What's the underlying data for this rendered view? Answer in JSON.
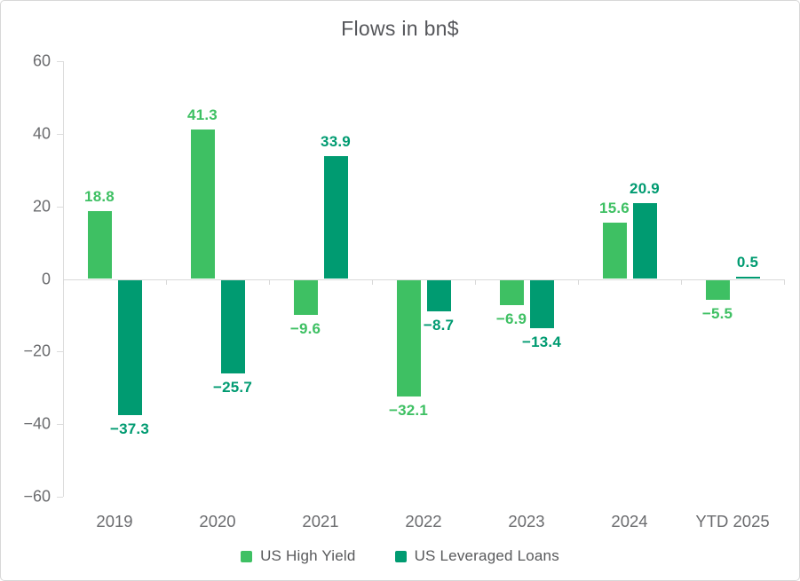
{
  "chart_data": {
    "type": "bar",
    "title": "Flows in bn$",
    "categories": [
      "2019",
      "2020",
      "2021",
      "2022",
      "2023",
      "2024",
      "YTD 2025"
    ],
    "series": [
      {
        "name": "US High Yield",
        "color": "#3ec063",
        "values": [
          18.8,
          41.3,
          -9.6,
          -32.1,
          -6.9,
          15.6,
          -5.5
        ]
      },
      {
        "name": "US Leveraged Loans",
        "color": "#009b71",
        "values": [
          -37.3,
          -25.7,
          33.9,
          -8.7,
          -13.4,
          20.9,
          0.5
        ]
      }
    ],
    "ylim": [
      -60,
      60
    ],
    "yticks": [
      60,
      40,
      20,
      0,
      -20,
      -40,
      -60
    ],
    "grid": false,
    "legend_position": "bottom",
    "value_labels": true
  },
  "colors": {
    "axis_line": "#dcdcdc",
    "zero_line": "#d9d9d9",
    "tick_text": "#6a6b6e",
    "title_text": "#55565a",
    "legend_text": "#58595b",
    "background": "#ffffff",
    "border": "#d7d7d7"
  }
}
